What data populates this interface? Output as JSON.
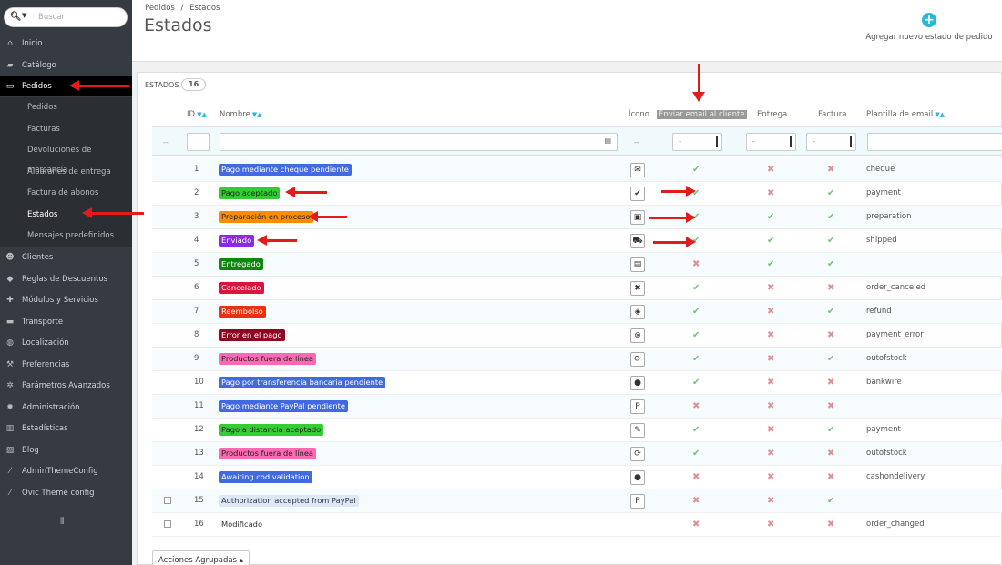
{
  "search": {
    "placeholder": "Buscar",
    "icon": "search-icon"
  },
  "menu": [
    {
      "label": "Inicio",
      "icon": "home-icon"
    },
    {
      "label": "Catálogo",
      "icon": "book-icon"
    },
    {
      "label": "Pedidos",
      "icon": "card-icon",
      "active": true
    },
    {
      "label": "Clientes",
      "icon": "users-icon"
    },
    {
      "label": "Reglas de Descuentos",
      "icon": "tag-icon"
    },
    {
      "label": "Módulos y Servicios",
      "icon": "puzzle-icon"
    },
    {
      "label": "Transporte",
      "icon": "truck-icon"
    },
    {
      "label": "Localización",
      "icon": "globe-icon"
    },
    {
      "label": "Preferencias",
      "icon": "wrench-icon"
    },
    {
      "label": "Parámetros Avanzados",
      "icon": "cogs-icon"
    },
    {
      "label": "Administración",
      "icon": "gear-icon"
    },
    {
      "label": "Estadísticas",
      "icon": "chart-icon"
    },
    {
      "label": "Blog",
      "icon": "edit-icon"
    },
    {
      "label": "AdminThemeConfig",
      "icon": "magic-icon"
    },
    {
      "label": "Ovic Theme config",
      "icon": "magic-icon"
    }
  ],
  "submenu": [
    "Pedidos",
    "Facturas",
    "Devoluciones de mercancía",
    "Albaranes de entrega",
    "Factura de abonos",
    "Estados",
    "Mensajes predefinidos"
  ],
  "header": {
    "breadcrumb_1": "Pedidos",
    "breadcrumb_sep": "/",
    "breadcrumb_2": "Estados",
    "title": "Estados",
    "add_label": "Agregar nuevo estado de pedido"
  },
  "panel": {
    "title": "ESTADOS",
    "count": "16"
  },
  "columns": {
    "id": "ID",
    "name": "Nombre",
    "icon": "Ícono",
    "send_email": "Enviar email al cliente",
    "delivery": "Entrega",
    "invoice": "Factura",
    "template": "Plantilla de email"
  },
  "filters": {
    "dash": "--",
    "select_value": "-"
  },
  "rows": [
    {
      "id": "1",
      "name": "Pago mediante cheque pendiente",
      "color": "#4169e1",
      "text_color": "#fff",
      "icon": "cheque-icon",
      "glyph": "✉",
      "email": true,
      "delivery": false,
      "invoice": false,
      "template": "cheque"
    },
    {
      "id": "2",
      "name": "Pago aceptado",
      "color": "#32cd32",
      "text_color": "#222",
      "icon": "check-icon",
      "glyph": "✔",
      "email": true,
      "delivery": false,
      "invoice": true,
      "template": "payment"
    },
    {
      "id": "3",
      "name": "Preparación en proceso",
      "color": "#ff8c00",
      "text_color": "#222",
      "icon": "box-icon",
      "glyph": "▣",
      "email": true,
      "delivery": true,
      "invoice": true,
      "template": "preparation"
    },
    {
      "id": "4",
      "name": "Enviado",
      "color": "#8a2be2",
      "text_color": "#fff",
      "icon": "truck-icon",
      "glyph": "⛟",
      "email": true,
      "delivery": true,
      "invoice": true,
      "template": "shipped"
    },
    {
      "id": "5",
      "name": "Entregado",
      "color": "#108510",
      "text_color": "#fff",
      "icon": "package-icon",
      "glyph": "▤",
      "email": false,
      "delivery": true,
      "invoice": true,
      "template": ""
    },
    {
      "id": "6",
      "name": "Cancelado",
      "color": "#dc143c",
      "text_color": "#fff",
      "icon": "cross-icon",
      "glyph": "✖",
      "email": true,
      "delivery": false,
      "invoice": false,
      "template": "order_canceled"
    },
    {
      "id": "7",
      "name": "Reembolso",
      "color": "#ec2e15",
      "text_color": "#fff",
      "icon": "money-icon",
      "glyph": "◈",
      "email": true,
      "delivery": false,
      "invoice": true,
      "template": "refund"
    },
    {
      "id": "8",
      "name": "Error en el pago",
      "color": "#8f0621",
      "text_color": "#fff",
      "icon": "error-icon",
      "glyph": "⊗",
      "email": true,
      "delivery": false,
      "invoice": false,
      "template": "payment_error"
    },
    {
      "id": "9",
      "name": "Productos fuera de línea",
      "color": "#ff69b4",
      "text_color": "#222",
      "icon": "refresh-icon",
      "glyph": "⟳",
      "email": true,
      "delivery": false,
      "invoice": true,
      "template": "outofstock"
    },
    {
      "id": "10",
      "name": "Pago por transferencia bancaria pendiente",
      "color": "#4169e1",
      "text_color": "#fff",
      "icon": "coins-icon",
      "glyph": "●",
      "email": true,
      "delivery": false,
      "invoice": false,
      "template": "bankwire"
    },
    {
      "id": "11",
      "name": "Pago mediante PayPal pendiente",
      "color": "#4169e1",
      "text_color": "#fff",
      "icon": "paypal-icon",
      "glyph": "P",
      "email": false,
      "delivery": false,
      "invoice": false,
      "template": ""
    },
    {
      "id": "12",
      "name": "Pago a distancia aceptado",
      "color": "#32cd32",
      "text_color": "#222",
      "icon": "remote-icon",
      "glyph": "✎",
      "email": true,
      "delivery": false,
      "invoice": true,
      "template": "payment"
    },
    {
      "id": "13",
      "name": "Productos fuera de línea",
      "color": "#ff69b4",
      "text_color": "#222",
      "icon": "refresh-icon",
      "glyph": "⟳",
      "email": true,
      "delivery": false,
      "invoice": false,
      "template": "outofstock"
    },
    {
      "id": "14",
      "name": "Awaiting cod validation",
      "color": "#4169e1",
      "text_color": "#fff",
      "icon": "coins-icon",
      "glyph": "●",
      "email": false,
      "delivery": false,
      "invoice": false,
      "template": "cashondelivery"
    },
    {
      "id": "15",
      "name": "Authorization accepted from PayPal",
      "color": "#dde8f7",
      "text_color": "#333",
      "icon": "paypal-icon",
      "glyph": "P",
      "email": false,
      "delivery": false,
      "invoice": true,
      "template": "",
      "checkbox": true
    },
    {
      "id": "16",
      "name": "Modificado",
      "color": "",
      "text_color": "#333",
      "icon": "",
      "glyph": "",
      "email": false,
      "delivery": false,
      "invoice": false,
      "template": "order_changed",
      "checkbox": true
    }
  ],
  "bulk_actions": "Acciones Agrupadas ▴",
  "marks": {
    "ok": "✔",
    "no": "✖"
  }
}
